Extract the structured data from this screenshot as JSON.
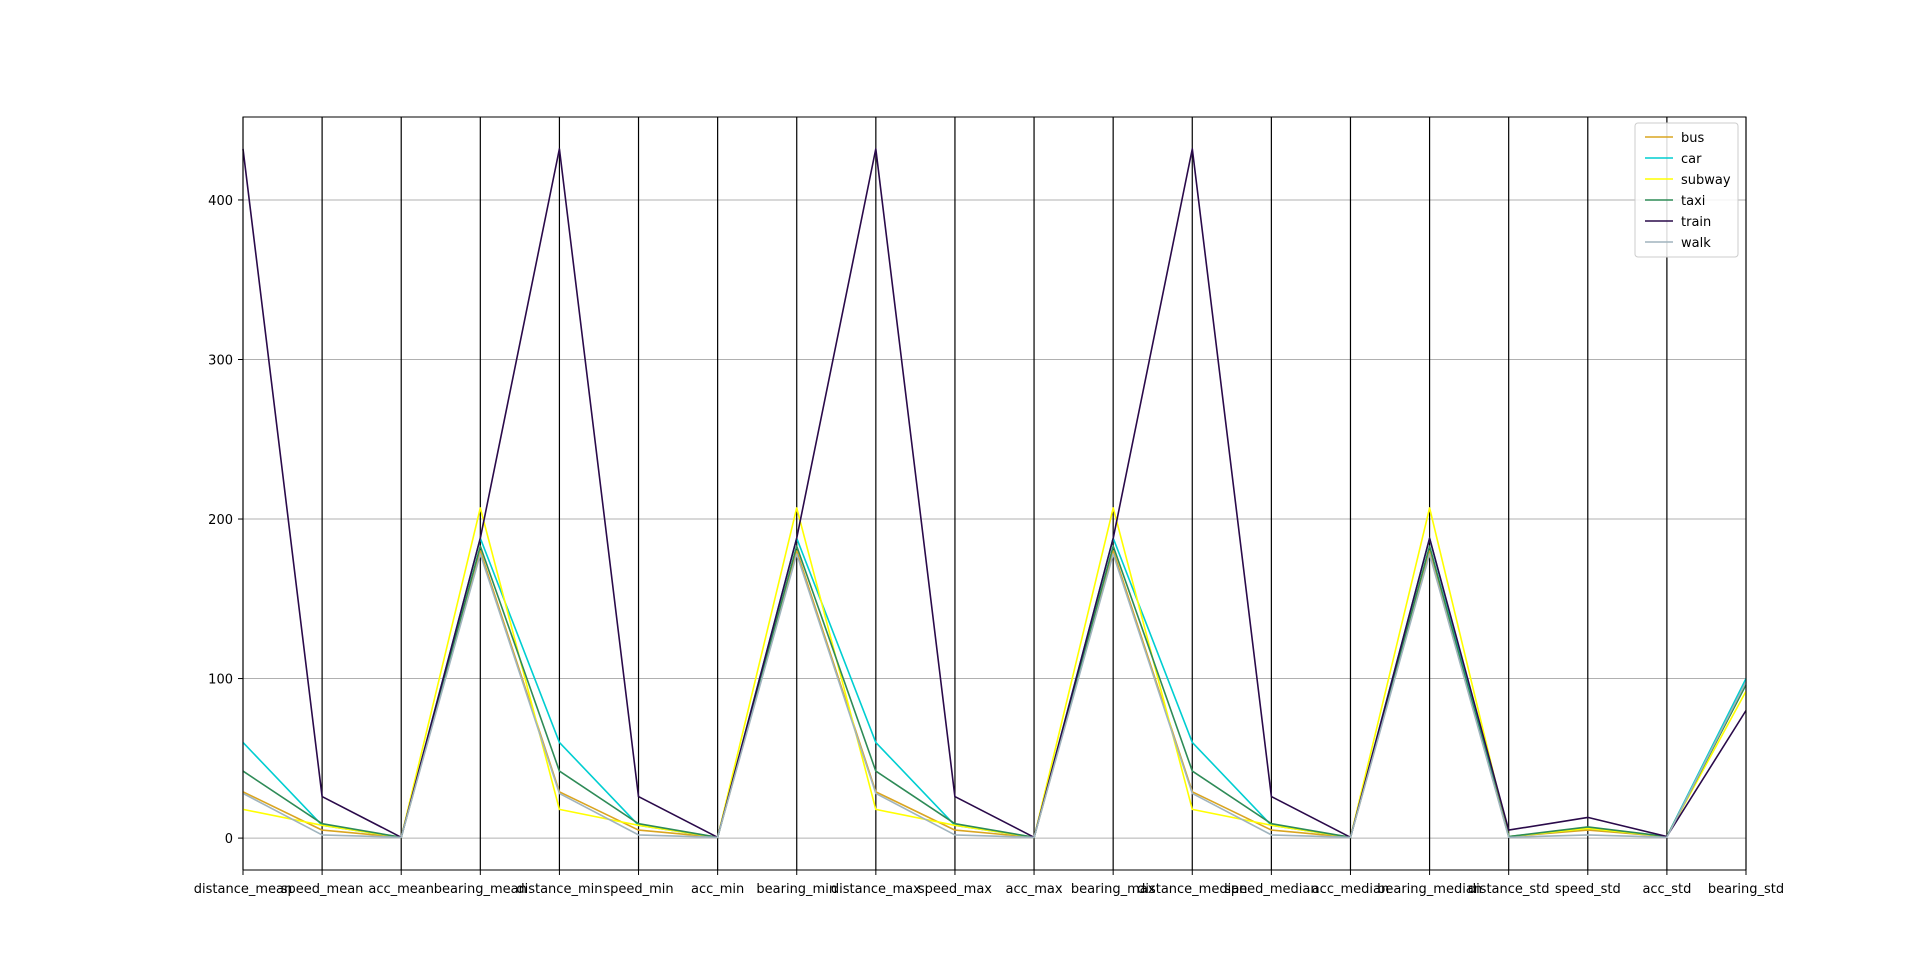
{
  "chart_data": {
    "type": "line",
    "subtype": "parallel-coordinates",
    "title": "",
    "xlabel": "",
    "ylabel": "",
    "ylim": [
      -20,
      452
    ],
    "yticks": [
      0,
      100,
      200,
      300,
      400
    ],
    "grid": "horizontal",
    "legend_position": "top-right",
    "categories": [
      "distance_mean",
      "speed_mean",
      "acc_mean",
      "bearing_mean",
      "distance_min",
      "speed_min",
      "acc_min",
      "bearing_min",
      "distance_max",
      "speed_max",
      "acc_max",
      "bearing_max",
      "distance_median",
      "speed_median",
      "acc_median",
      "bearing_median",
      "distance_std",
      "speed_std",
      "acc_std",
      "bearing_std"
    ],
    "series": [
      {
        "name": "bus",
        "color": "#DAA520",
        "values": [
          29,
          5,
          0.5,
          180,
          29,
          5,
          0.5,
          180,
          29,
          5,
          0.5,
          180,
          29,
          5,
          0.5,
          180,
          1,
          5,
          1,
          98
        ]
      },
      {
        "name": "car",
        "color": "#00CED1",
        "values": [
          60,
          8,
          0.5,
          188,
          60,
          8,
          0.5,
          188,
          60,
          8,
          0.5,
          188,
          60,
          8,
          0.5,
          188,
          1,
          6,
          1,
          100
        ]
      },
      {
        "name": "subway",
        "color": "#FFFF00",
        "values": [
          18,
          8,
          0.5,
          207,
          18,
          8,
          0.5,
          207,
          18,
          8,
          0.5,
          207,
          18,
          8,
          0.5,
          207,
          1,
          6,
          1,
          92
        ]
      },
      {
        "name": "taxi",
        "color": "#2E8B57",
        "values": [
          42,
          9,
          0.5,
          183,
          42,
          9,
          0.5,
          183,
          42,
          9,
          0.5,
          183,
          42,
          9,
          0.5,
          183,
          1,
          7,
          1,
          96
        ]
      },
      {
        "name": "train",
        "color": "#2A0A4A",
        "values": [
          432,
          26,
          0.5,
          188,
          432,
          26,
          0.5,
          188,
          432,
          26,
          0.5,
          188,
          432,
          26,
          0.5,
          188,
          5,
          13,
          1,
          80
        ]
      },
      {
        "name": "walk",
        "color": "#A0B4BE",
        "values": [
          28,
          2,
          0.5,
          178,
          28,
          2,
          0.5,
          178,
          28,
          2,
          0.5,
          178,
          28,
          2,
          0.5,
          178,
          0.5,
          2,
          0.5,
          98
        ]
      }
    ]
  }
}
